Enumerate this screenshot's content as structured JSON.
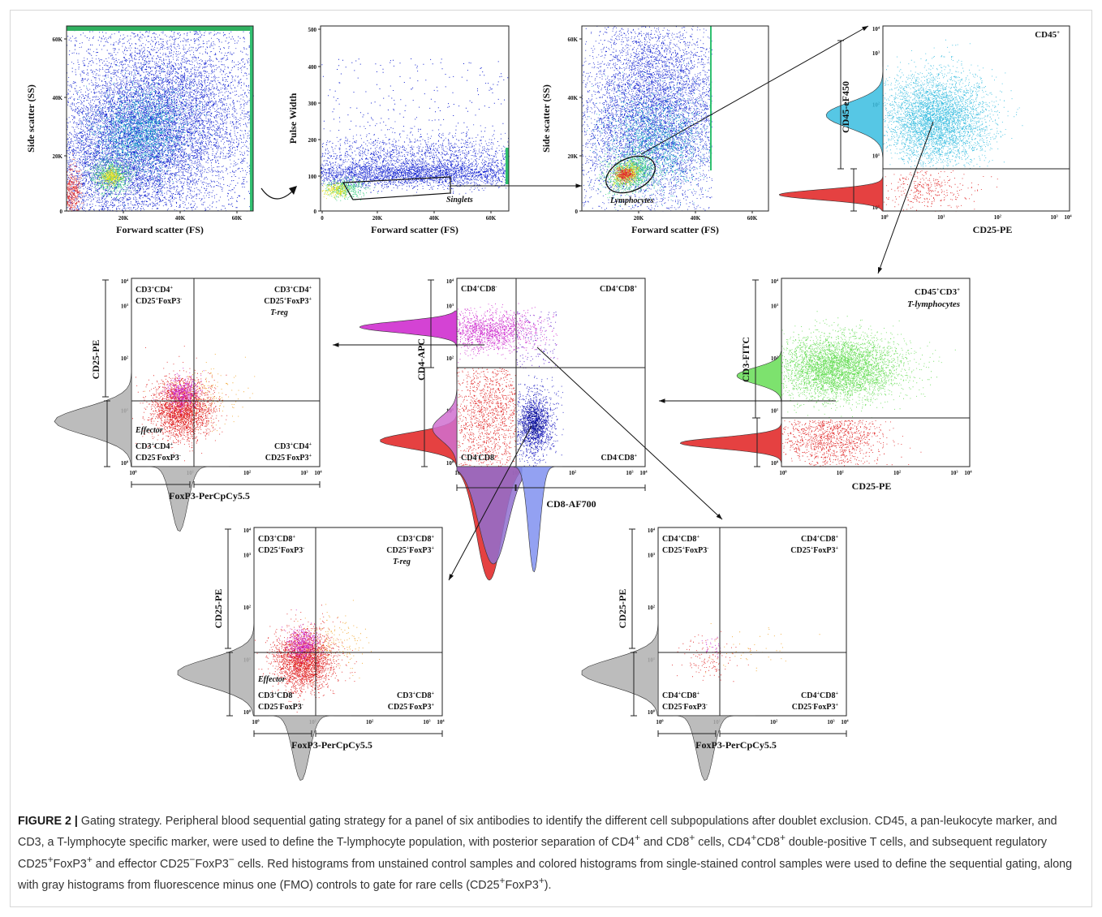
{
  "figure": {
    "label": "FIGURE 2 |",
    "caption_html": "Gating strategy. Peripheral blood sequential gating strategy for a panel of six antibodies to identify the different cell subpopulations after doublet exclusion. CD45, a pan-leukocyte marker, and CD3, a T-lymphocyte specific marker, were used to define the T-lymphocyte population, with posterior separation of CD4<sup>+</sup> and CD8<sup>+</sup> cells, CD4<sup>+</sup>CD8<sup>+</sup> double-positive T cells, and subsequent regulatory CD25<sup>+</sup>FoxP3<sup>+</sup> and effector CD25<sup>−</sup>FoxP3<sup>−</sup> cells. Red histograms from unstained control samples and colored histograms from single-stained control samples were used to define the sequential gating, along with gray histograms from fluorescence minus one (FMO) controls to gate for rare cells (CD25<sup>+</sup>FoxP3<sup>+</sup>)."
  },
  "chart_data": [
    {
      "id": "p1",
      "type": "scatter",
      "xlabel": "Forward scatter (FS)",
      "ylabel": "Side scatter (SS)",
      "xticks": [
        "20K",
        "40K",
        "60K"
      ],
      "yticks": [
        "0",
        "20K",
        "40K",
        "60K"
      ],
      "xlim": [
        0,
        66000
      ],
      "ylim": [
        0,
        66000
      ],
      "gate_label": ""
    },
    {
      "id": "p2",
      "type": "scatter",
      "xlabel": "Forward scatter (FS)",
      "ylabel": "Pulse Width",
      "xticks": [
        "0",
        "20K",
        "40K",
        "60K"
      ],
      "yticks": [
        "0",
        "100",
        "200",
        "300",
        "400",
        "500"
      ],
      "xlim": [
        0,
        66000
      ],
      "ylim": [
        0,
        510
      ],
      "gate_label": "Singlets"
    },
    {
      "id": "p3",
      "type": "scatter",
      "xlabel": "Forward scatter (FS)",
      "ylabel": "Side scatter (SS)",
      "xticks": [
        "20K",
        "40K",
        "60K"
      ],
      "yticks": [
        "0",
        "20K",
        "40K",
        "60K"
      ],
      "xlim": [
        0,
        66000
      ],
      "ylim": [
        0,
        66000
      ],
      "gate_label": "Lymphocytes"
    },
    {
      "id": "p4",
      "type": "scatter",
      "xlabel": "CD25-PE",
      "ylabel": "CD45-eF450",
      "xscale": "log",
      "yscale": "log",
      "quadrants": {
        "tr": "CD45<sup>+</sup>"
      }
    },
    {
      "id": "p5",
      "type": "scatter",
      "xlabel": "CD25-PE",
      "ylabel": "CD3-FITC",
      "xscale": "log",
      "yscale": "log",
      "quadrants": {
        "tr": "CD45<sup>+</sup>CD3<sup>+</sup>",
        "tr_sub": "T-lymphocytes"
      }
    },
    {
      "id": "p6",
      "type": "scatter",
      "xlabel": "CD8-AF700",
      "ylabel": "CD4-APC",
      "xscale": "log",
      "yscale": "log",
      "quadrants": {
        "tl": "CD4<sup>+</sup>CD8<sup>-</sup>",
        "tr": "CD4<sup>+</sup>CD8<sup>+</sup>",
        "bl": "CD4<sup>-</sup>CD8<sup>-</sup>",
        "br": "CD4<sup>-</sup>CD8<sup>+</sup>"
      }
    },
    {
      "id": "p7",
      "type": "scatter",
      "xlabel": "FoxP3-PerCpCy5.5",
      "ylabel": "CD25-PE",
      "xscale": "log",
      "yscale": "log",
      "quadrants": {
        "tl": "CD3<sup>+</sup>CD4<sup>+</sup>",
        "tl2": "CD25<sup>+</sup>FoxP3<sup>-</sup>",
        "tr": "CD3<sup>+</sup>CD4<sup>+</sup>",
        "tr2": "CD25<sup>+</sup>FoxP3<sup>+</sup>",
        "tr_sub": "T-reg",
        "bl_sub": "Effector",
        "bl": "CD3<sup>+</sup>CD4<sup>+</sup>",
        "bl2": "CD25<sup>-</sup>FoxP3<sup>-</sup>",
        "br": "CD3<sup>+</sup>CD4<sup>+</sup>",
        "br2": "CD25<sup>-</sup>FoxP3<sup>+</sup>"
      }
    },
    {
      "id": "p8",
      "type": "scatter",
      "xlabel": "FoxP3-PerCpCy5.5",
      "ylabel": "CD25-PE",
      "xscale": "log",
      "yscale": "log",
      "quadrants": {
        "tl": "CD3<sup>+</sup>CD8<sup>+</sup>",
        "tl2": "CD25<sup>+</sup>FoxP3<sup>-</sup>",
        "tr": "CD3<sup>+</sup>CD8<sup>+</sup>",
        "tr2": "CD25<sup>+</sup>FoxP3<sup>+</sup>",
        "tr_sub": "T-reg",
        "bl_sub": "Effector",
        "bl": "CD3<sup>+</sup>CD8<sup>-</sup>",
        "bl2": "CD25<sup>-</sup>FoxP3<sup>-</sup>",
        "br": "CD3<sup>+</sup>CD8<sup>+</sup>",
        "br2": "CD25<sup>-</sup>FoxP3<sup>+</sup>"
      }
    },
    {
      "id": "p9",
      "type": "scatter",
      "xlabel": "FoxP3-PerCpCy5.5",
      "ylabel": "CD25-PE",
      "xscale": "log",
      "yscale": "log",
      "quadrants": {
        "tl": "CD4<sup>+</sup>CD8<sup>+</sup>",
        "tl2": "CD25<sup>+</sup>FoxP3<sup>-</sup>",
        "tr": "CD4<sup>+</sup>CD8<sup>+</sup>",
        "tr2": "CD25<sup>+</sup>FoxP3<sup>+</sup>",
        "bl": "CD4<sup>+</sup>CD8<sup>+</sup>",
        "bl2": "CD25<sup>-</sup>FoxP3<sup>-</sup>",
        "br": "CD4<sup>+</sup>CD8<sup>+</sup>",
        "br2": "CD25<sup>-</sup>FoxP3<sup>+</sup>"
      }
    }
  ],
  "log_tick_labels": [
    "10",
    "1",
    "10",
    "2",
    "10",
    "3",
    "10",
    "4"
  ],
  "colors": {
    "density_blue": "#1020d0",
    "cyan": "#38bde0",
    "green": "#66dd55",
    "magenta": "#cc22cc",
    "red": "#e02020",
    "dark_blue": "#1010c0",
    "gray": "#b0b0b0",
    "orange": "#f0a020"
  }
}
